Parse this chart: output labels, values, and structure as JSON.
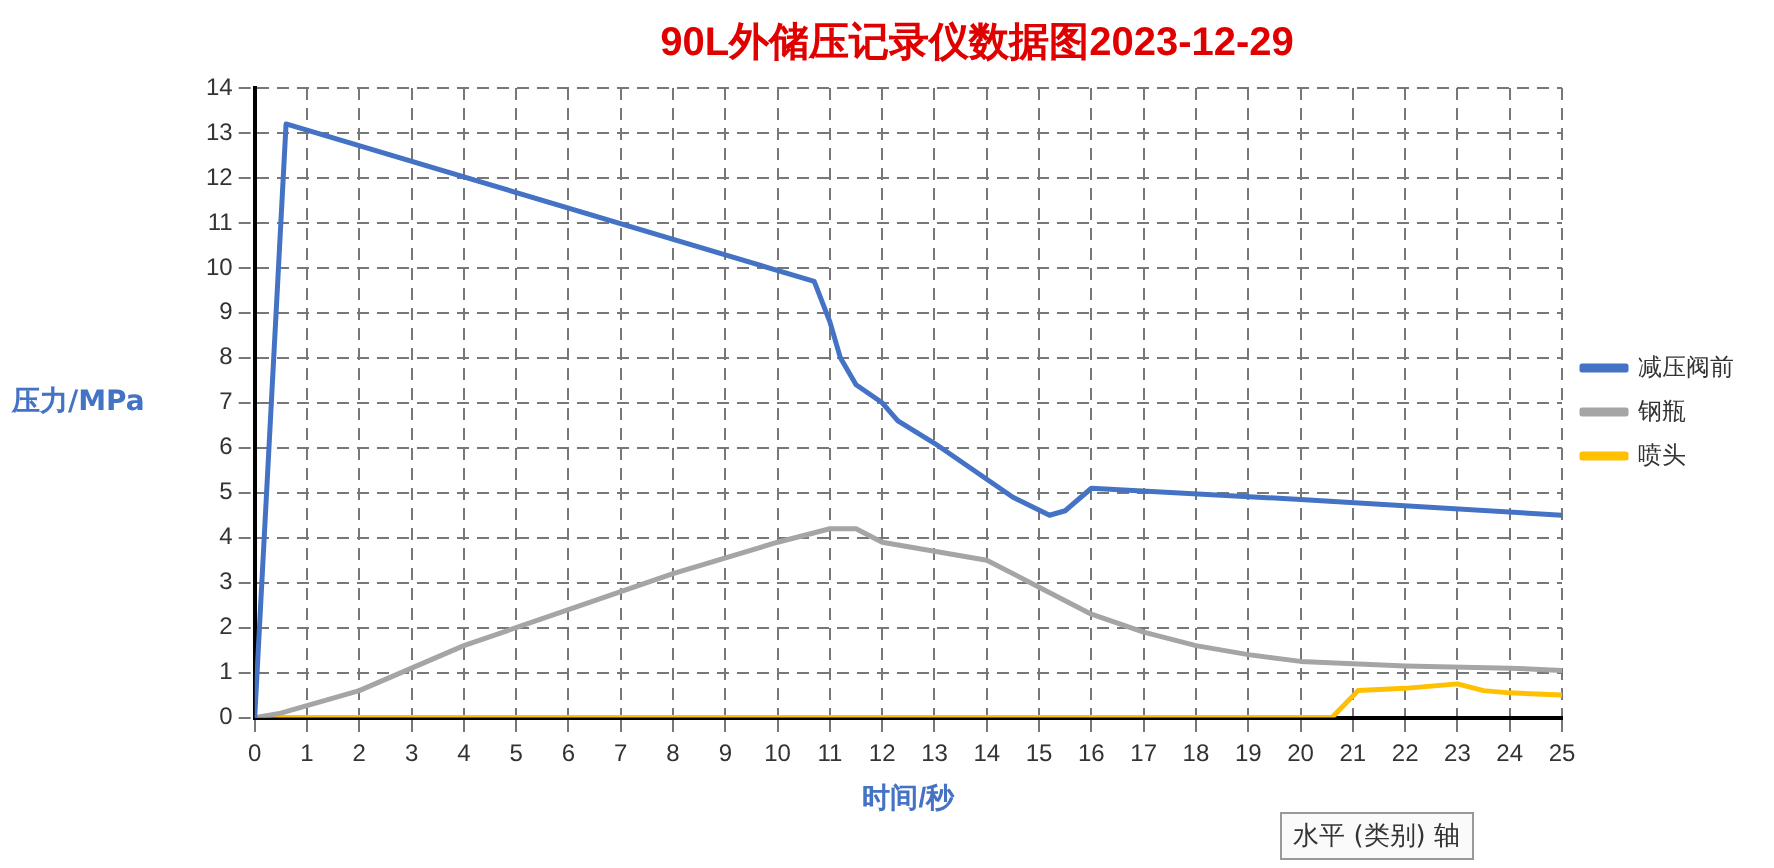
{
  "chart_data": {
    "type": "line",
    "title": "90L外储压记录仪数据图2023-12-29",
    "xlabel": "时间/秒",
    "ylabel": "压力/MPa",
    "xlim": [
      0,
      25
    ],
    "xticks": [
      0,
      1,
      2,
      3,
      4,
      5,
      6,
      7,
      8,
      9,
      10,
      11,
      12,
      13,
      14,
      15,
      16,
      17,
      18,
      19,
      20,
      21,
      22,
      23,
      24,
      25
    ],
    "ylim": [
      0,
      14
    ],
    "yticks": [
      0,
      1,
      2,
      3,
      4,
      5,
      6,
      7,
      8,
      9,
      10,
      11,
      12,
      13,
      14
    ],
    "grid": true,
    "legend": "right",
    "marker": "none",
    "line_style": "solid",
    "annotations": [
      "水平 (类别) 轴"
    ],
    "series": [
      {
        "name": "减压阀前",
        "color": "#4472c4",
        "x": [
          0,
          0.6,
          10.7,
          11,
          11.2,
          11.5,
          12,
          12.3,
          13,
          14,
          14.5,
          15.2,
          15.5,
          16,
          20,
          25
        ],
        "values": [
          0,
          13.2,
          9.7,
          8.8,
          8,
          7.4,
          7,
          6.6,
          6.1,
          5.3,
          4.9,
          4.5,
          4.6,
          5.1,
          4.85,
          4.5
        ]
      },
      {
        "name": "钢瓶",
        "color": "#a5a5a5",
        "x": [
          0,
          0.5,
          2,
          4,
          6,
          8,
          10,
          11,
          11.5,
          12,
          13,
          14,
          15,
          16,
          17,
          18,
          19,
          20,
          22,
          24,
          25
        ],
        "values": [
          0,
          0.1,
          0.6,
          1.6,
          2.4,
          3.2,
          3.9,
          4.2,
          4.2,
          3.9,
          3.7,
          3.5,
          2.9,
          2.3,
          1.9,
          1.6,
          1.4,
          1.25,
          1.15,
          1.1,
          1.05
        ]
      },
      {
        "name": "喷头",
        "color": "#ffc000",
        "x": [
          0,
          20.6,
          21.1,
          22,
          23,
          23.5,
          24,
          25
        ],
        "values": [
          0,
          0,
          0.6,
          0.65,
          0.75,
          0.6,
          0.55,
          0.5
        ]
      }
    ]
  }
}
